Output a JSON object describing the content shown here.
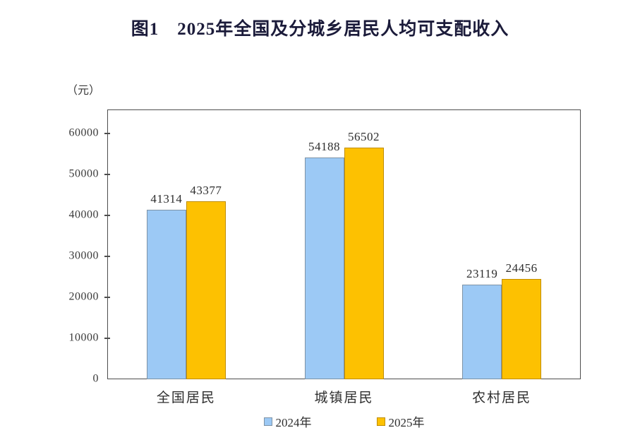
{
  "title": "图1　2025年全国及分城乡居民人均可支配收入",
  "unit_label": "（元）",
  "colors": {
    "title": "#1b1b3a",
    "axis": "#4d4d4d",
    "text": "#2e2e2e",
    "background": "#ffffff",
    "series_2024_fill": "#9cc9f5",
    "series_2024_border": "#7e93a6",
    "series_2025_fill": "#fdc101",
    "series_2025_border": "#c08d00"
  },
  "chart_data": {
    "type": "bar",
    "title": "图1　2025年全国及分城乡居民人均可支配收入",
    "xlabel": "",
    "ylabel": "（元）",
    "categories": [
      "全国居民",
      "城镇居民",
      "农村居民"
    ],
    "series": [
      {
        "name": "2024年",
        "values": [
          41314,
          54188,
          23119
        ],
        "fill": "#9cc9f5",
        "border": "#7e93a6"
      },
      {
        "name": "2025年",
        "values": [
          43377,
          56502,
          24456
        ],
        "fill": "#fdc101",
        "border": "#c08d00"
      }
    ],
    "ylim": [
      0,
      66000
    ],
    "yticks": [
      0,
      10000,
      20000,
      30000,
      40000,
      50000,
      60000
    ],
    "grid": false,
    "legend_position": "bottom",
    "data_labels": true
  }
}
